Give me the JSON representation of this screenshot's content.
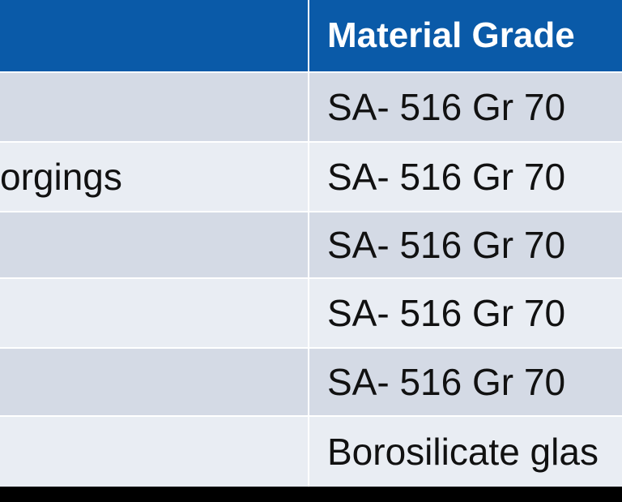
{
  "table": {
    "header": {
      "col1": "",
      "col2": "Material Grade"
    },
    "rows": [
      {
        "col1": "",
        "col2": "SA- 516 Gr 70"
      },
      {
        "col1": "orgings",
        "col2": "SA- 516 Gr 70"
      },
      {
        "col1": "",
        "col2": "SA- 516 Gr 70"
      },
      {
        "col1": "",
        "col2": "SA- 516 Gr 70"
      },
      {
        "col1": "",
        "col2": "SA- 516 Gr 70"
      },
      {
        "col1": "",
        "col2": "Borosilicate glas"
      }
    ]
  },
  "colors": {
    "header_bg": "#0a5aa8",
    "row_dark": "#d4dae5",
    "row_light": "#e9edf3"
  }
}
